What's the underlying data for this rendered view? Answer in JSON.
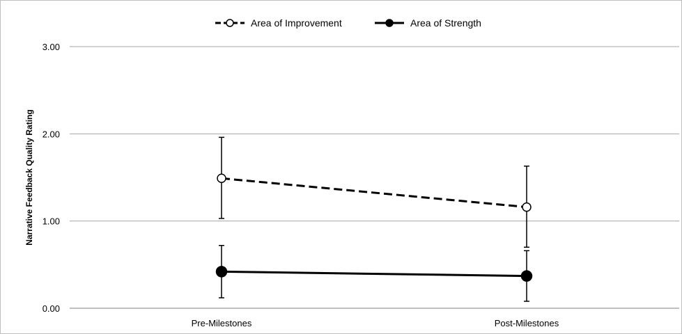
{
  "chart_data": {
    "type": "line",
    "title": "",
    "xlabel": "",
    "ylabel": "Narrative Feedback Quality Rating",
    "categories": [
      "Pre-Milestones",
      "Post-Milestones"
    ],
    "ylim": [
      0,
      3
    ],
    "yticks": [
      0,
      1,
      2,
      3
    ],
    "ytick_labels": [
      "0.00",
      "1.00",
      "2.00",
      "3.00"
    ],
    "grid": "horizontal",
    "legend": "top-center",
    "series": [
      {
        "name": "Area of Improvement",
        "values": [
          1.49,
          1.16
        ],
        "error_low": [
          1.03,
          0.7
        ],
        "error_high": [
          1.96,
          1.63
        ],
        "line_style": "dashed",
        "marker": "open-circle",
        "color": "#000000"
      },
      {
        "name": "Area of Strength",
        "values": [
          0.42,
          0.37
        ],
        "error_low": [
          0.12,
          0.08
        ],
        "error_high": [
          0.72,
          0.66
        ],
        "line_style": "solid",
        "marker": "filled-circle",
        "color": "#000000"
      }
    ]
  }
}
